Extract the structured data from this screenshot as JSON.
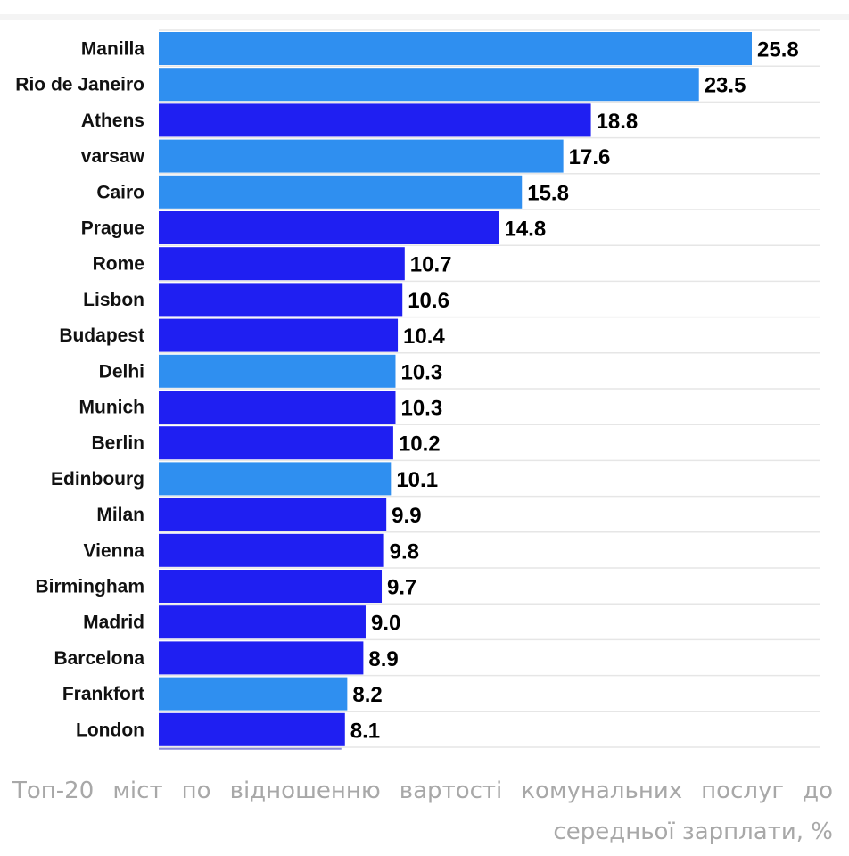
{
  "chart_data": {
    "type": "bar",
    "orientation": "horizontal",
    "categories": [
      "Manilla",
      "Rio de Janeiro",
      "Athens",
      "varsaw",
      "Cairo",
      "Prague",
      "Rome",
      "Lisbon",
      "Budapest",
      "Delhi",
      "Munich",
      "Berlin",
      "Edinbourg",
      "Milan",
      "Vienna",
      "Birmingham",
      "Madrid",
      "Barcelona",
      "Frankfort",
      "London"
    ],
    "values": [
      25.8,
      23.5,
      18.8,
      17.6,
      15.8,
      14.8,
      10.7,
      10.6,
      10.4,
      10.3,
      10.3,
      10.2,
      10.1,
      9.9,
      9.8,
      9.7,
      9.0,
      8.9,
      8.2,
      8.1
    ],
    "value_labels": [
      "25.8",
      "23.5",
      "18.8",
      "17.6",
      "15.8",
      "14.8",
      "10.7",
      "10.6",
      "10.4",
      "10.3",
      "10.3",
      "10.2",
      "10.1",
      "9.9",
      "9.8",
      "9.7",
      "9.0",
      "8.9",
      "8.2",
      "8.1"
    ],
    "bar_colors": [
      "#2f8ff0",
      "#2f8ff0",
      "#1f1ff2",
      "#2f8ff0",
      "#2f8ff0",
      "#1f1ff2",
      "#1f1ff2",
      "#1f1ff2",
      "#1f1ff2",
      "#2f8ff0",
      "#1f1ff2",
      "#1f1ff2",
      "#2f8ff0",
      "#1f1ff2",
      "#1f1ff2",
      "#1f1ff2",
      "#1f1ff2",
      "#1f1ff2",
      "#2f8ff0",
      "#1f1ff2"
    ],
    "gridline_color": "#e6e6e6",
    "xlim": [
      0,
      25.8
    ],
    "grid": true,
    "title": "",
    "xlabel": "",
    "ylabel": ""
  },
  "caption": "Топ-20 міст по відношенню вартості комунальних послуг до середньої зарплати, %"
}
